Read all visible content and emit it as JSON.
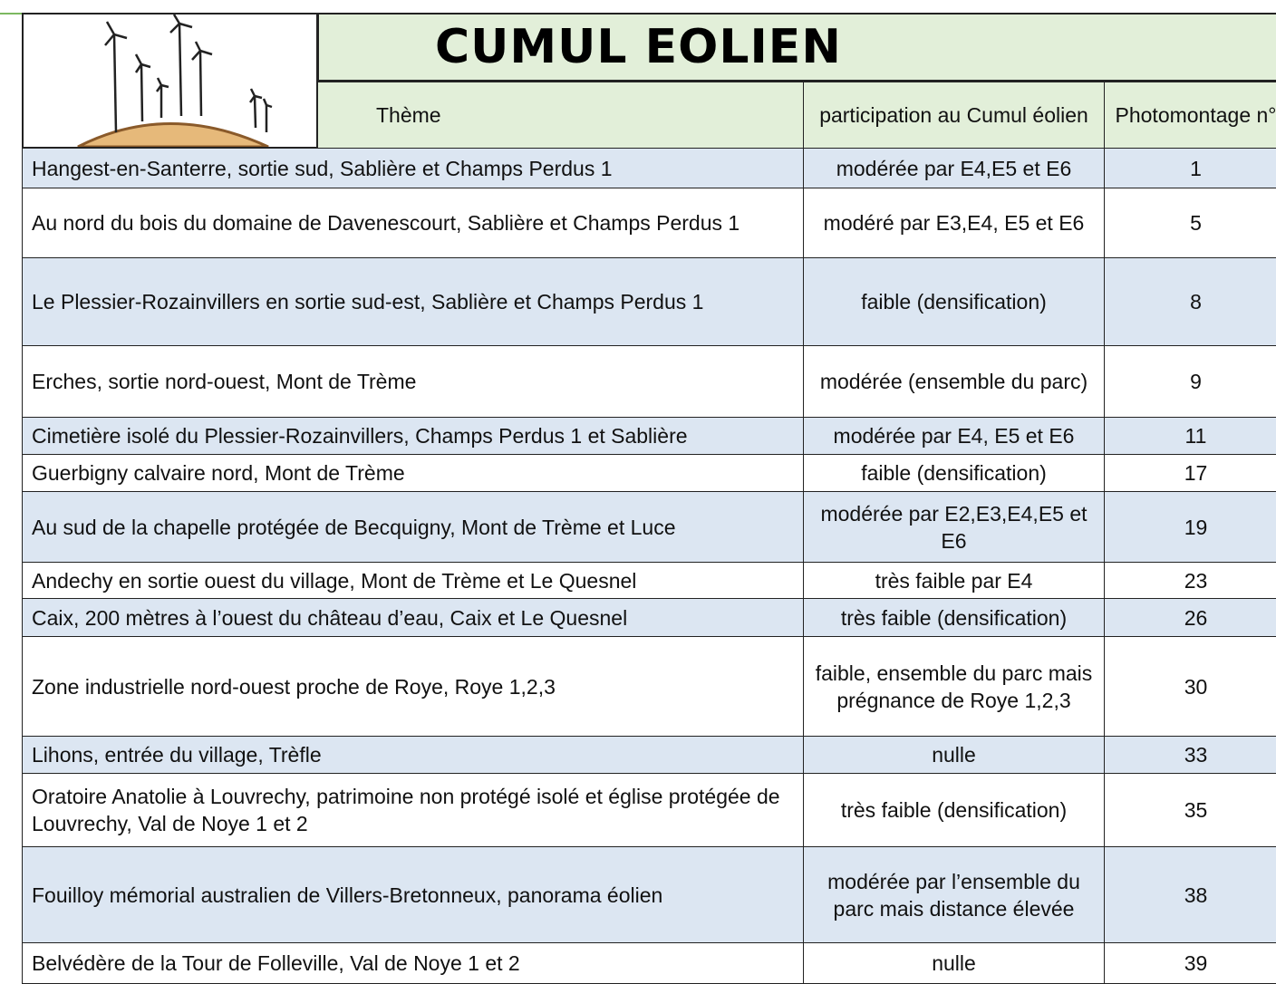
{
  "header": {
    "title": "CUMUL EOLIEN",
    "columns": [
      "Thème",
      "participation au Cumul éolien",
      "Photomontage n°"
    ]
  },
  "table": {
    "rows": [
      [
        "Hangest-en-Santerre, sortie sud, Sablière et Champs Perdus 1",
        "modérée par E4,E5 et E6",
        1
      ],
      [
        "Au nord du bois du domaine de Davenescourt, Sablière et Champs Perdus 1",
        "modéré par E3,E4, E5 et E6",
        5
      ],
      [
        "Le Plessier-Rozainvillers en sortie sud-est, Sablière et Champs Perdus 1",
        "faible (densification)",
        8
      ],
      [
        "Erches, sortie nord-ouest, Mont de Trème",
        "modérée (ensemble du parc)",
        9
      ],
      [
        "Cimetière isolé du Plessier-Rozainvillers, Champs Perdus 1 et Sablière",
        "modérée par E4, E5 et E6",
        11
      ],
      [
        "Guerbigny calvaire nord, Mont de Trème",
        "faible (densification)",
        17
      ],
      [
        "Au sud de la chapelle protégée de Becquigny, Mont de Trème et Luce",
        "modérée par E2,E3,E4,E5 et E6",
        19
      ],
      [
        "Andechy en sortie ouest du village, Mont de Trème et Le Quesnel",
        "très faible par E4",
        23
      ],
      [
        "Caix, 200 mètres à l’ouest du château d’eau, Caix et Le Quesnel",
        "très faible (densification)",
        26
      ],
      [
        "Zone industrielle nord-ouest proche de Roye, Roye 1,2,3",
        "faible, ensemble du parc mais prégnance de Roye 1,2,3",
        30
      ],
      [
        "Lihons, entrée du village, Trèfle",
        "nulle",
        33
      ],
      [
        "Oratoire Anatolie à Louvrechy, patrimoine non protégé isolé et église protégée de Louvrechy, Val de Noye 1 et 2",
        "très faible (densification)",
        35
      ],
      [
        "Fouilloy mémorial australien de Villers-Bretonneux, panorama éolien",
        "modérée par l’ensemble du parc mais distance élevée",
        38
      ],
      [
        "Belvédère de la Tour de Folleville, Val de Noye 1 et 2",
        "nulle",
        39
      ]
    ]
  }
}
